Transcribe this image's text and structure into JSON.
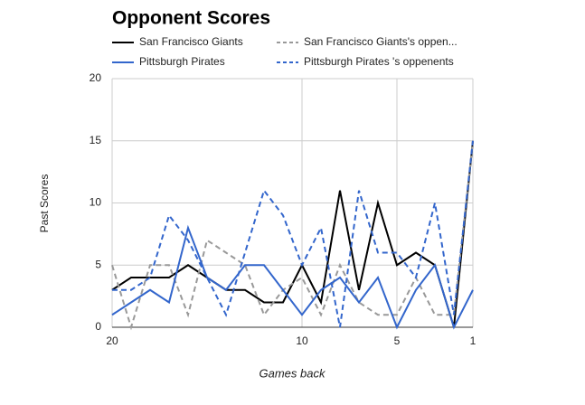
{
  "chart_data": {
    "type": "line",
    "title": "Opponent Scores",
    "x_label": "Games back",
    "y_label": "Past Scores",
    "x": [
      20,
      19,
      18,
      17,
      16,
      15,
      14,
      13,
      12,
      11,
      10,
      9,
      8,
      7,
      6,
      5,
      4,
      3,
      2,
      1
    ],
    "xlim": [
      20,
      1
    ],
    "xticks": [
      20,
      10,
      5,
      1
    ],
    "ylim": [
      0,
      20
    ],
    "yticks": [
      0,
      5,
      10,
      15,
      20
    ],
    "grid": true,
    "series": [
      {
        "name": "San Francisco Giants",
        "color": "#000000",
        "dashed": false,
        "values": [
          3,
          4,
          4,
          4,
          5,
          4,
          3,
          3,
          2,
          2,
          5,
          2,
          11,
          3,
          10,
          5,
          6,
          5,
          0,
          15
        ]
      },
      {
        "name": "San Francisco Giants's oppen...",
        "color": "#999999",
        "dashed": true,
        "values": [
          5,
          0,
          5,
          5,
          1,
          7,
          6,
          5,
          1,
          3,
          4,
          1,
          5,
          2,
          1,
          1,
          4,
          1,
          1,
          15
        ]
      },
      {
        "name": "Pittsburgh Pirates",
        "color": "#3366cc",
        "dashed": false,
        "values": [
          1,
          2,
          3,
          2,
          8,
          4,
          3,
          5,
          5,
          3,
          1,
          3,
          4,
          2,
          4,
          0,
          3,
          5,
          0,
          3
        ]
      },
      {
        "name": "Pittsburgh Pirates 's oppenents",
        "color": "#3366cc",
        "dashed": true,
        "values": [
          3,
          3,
          4,
          9,
          7,
          4,
          1,
          6,
          11,
          9,
          5,
          8,
          0,
          11,
          6,
          6,
          4,
          10,
          1,
          15
        ]
      }
    ]
  }
}
